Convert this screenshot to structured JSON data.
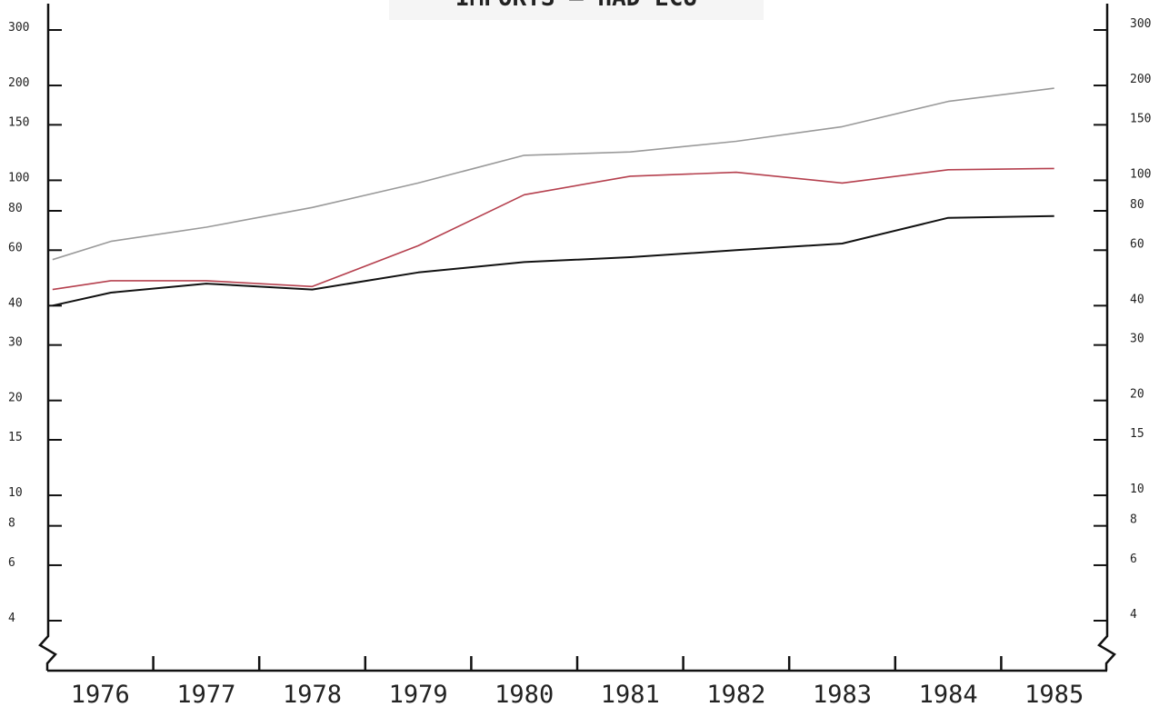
{
  "chart_data": {
    "type": "line",
    "title": "IMPORTS — HAD ECU",
    "x_labels": [
      "1976",
      "1977",
      "1978",
      "1979",
      "1980",
      "1981",
      "1982",
      "1983",
      "1984",
      "1985"
    ],
    "y_ticks": [
      4,
      6,
      8,
      10,
      15,
      20,
      30,
      40,
      60,
      80,
      100,
      150,
      200,
      300
    ],
    "y_scale": "log",
    "ylim": [
      4,
      300
    ],
    "x_span": [
      1975.5,
      1985.5
    ],
    "grid": false,
    "series": [
      {
        "color": "#9a9a9a",
        "x": [
          1975.55,
          1976.1,
          1977.0,
          1978.0,
          1979.0,
          1980.0,
          1981.0,
          1982.0,
          1983.0,
          1984.0,
          1985.0
        ],
        "values": [
          56,
          64,
          71,
          82,
          98,
          120,
          123,
          133,
          148,
          178,
          196
        ]
      },
      {
        "color": "#b5404e",
        "x": [
          1975.55,
          1976.1,
          1977.0,
          1978.0,
          1979.0,
          1980.0,
          1981.0,
          1982.0,
          1983.0,
          1984.0,
          1985.0
        ],
        "values": [
          45,
          48,
          48,
          46,
          62,
          90,
          103,
          106,
          98,
          108,
          109
        ]
      },
      {
        "color": "#111111",
        "x": [
          1975.55,
          1976.1,
          1977.0,
          1978.0,
          1979.0,
          1980.0,
          1981.0,
          1982.0,
          1983.0,
          1984.0,
          1985.0
        ],
        "values": [
          40,
          44,
          47,
          45,
          51,
          55,
          57,
          60,
          63,
          76,
          77
        ]
      }
    ]
  }
}
